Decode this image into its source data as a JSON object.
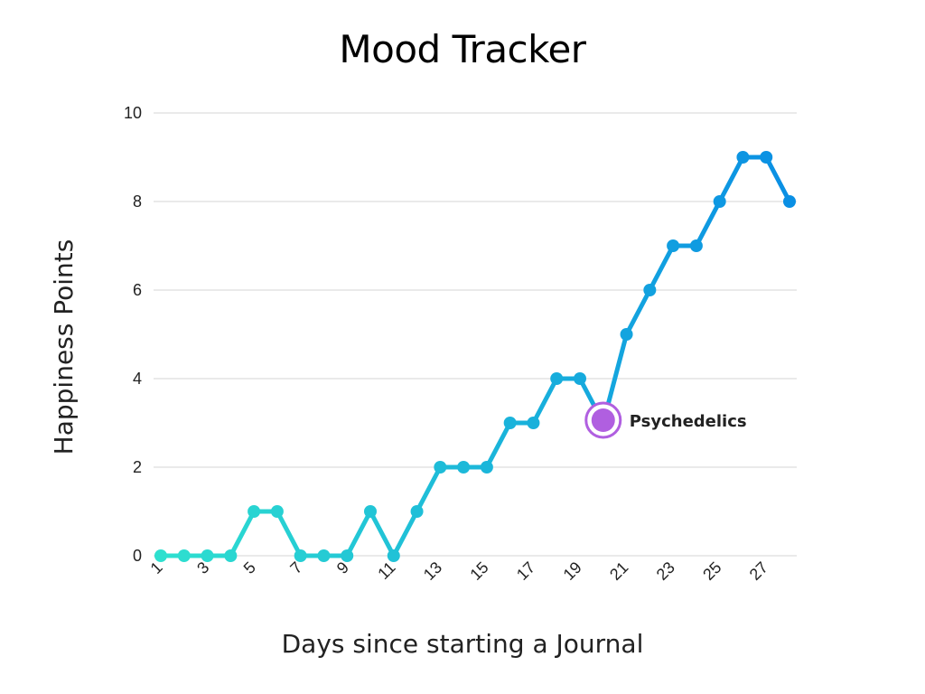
{
  "chart_data": {
    "type": "line",
    "title": "Mood Tracker",
    "xlabel": "Days since starting a Journal",
    "ylabel": "Happiness Points",
    "x": [
      1,
      2,
      3,
      4,
      5,
      6,
      7,
      8,
      9,
      10,
      11,
      12,
      13,
      14,
      15,
      16,
      17,
      18,
      19,
      20,
      21,
      22,
      23,
      24,
      25,
      26,
      27,
      28
    ],
    "x_tick_labels": [
      "1",
      "3",
      "5",
      "7",
      "9",
      "11",
      "13",
      "15",
      "17",
      "19",
      "21",
      "23",
      "25",
      "27"
    ],
    "y_tick_labels": [
      "0",
      "2",
      "4",
      "6",
      "8",
      "10"
    ],
    "y_ticks": [
      0,
      2,
      4,
      6,
      8,
      10
    ],
    "ylim": [
      0,
      10
    ],
    "grid": "horizontal",
    "series": [
      {
        "values": [
          0,
          0,
          0,
          0,
          1,
          1,
          0,
          0,
          0,
          1,
          0,
          1,
          2,
          2,
          2,
          3,
          3,
          4,
          4,
          3,
          5,
          6,
          7,
          7,
          8,
          9,
          9,
          8
        ]
      }
    ],
    "colors": {
      "gradient_start": "#2ee0cf",
      "gradient_end": "#0a8fe4",
      "grid": "#d6d6d6",
      "annotation": "#b05fe0"
    },
    "annotation": {
      "x": 20,
      "y": 3,
      "label": "Psychedelics"
    }
  }
}
